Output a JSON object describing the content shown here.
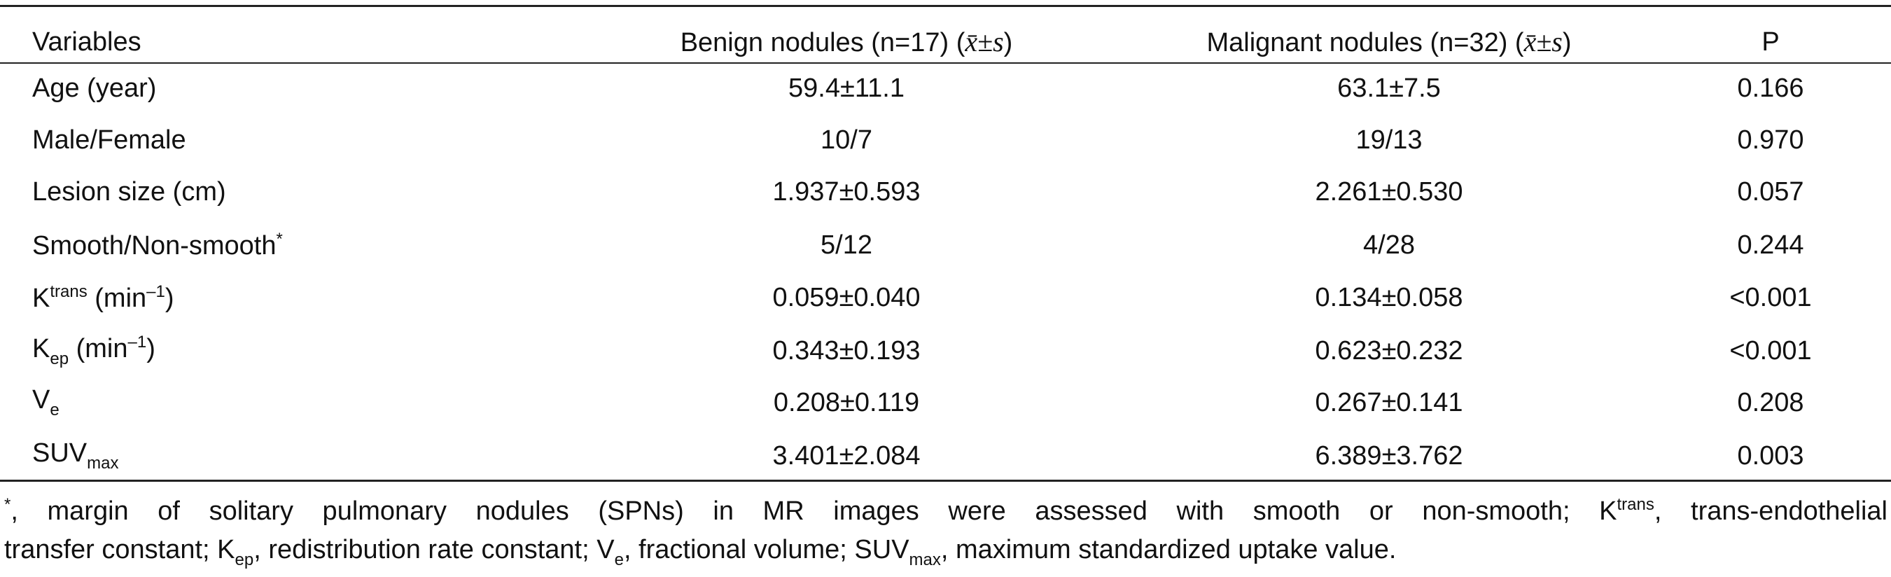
{
  "table": {
    "header": [
      [
        {
          "text": "Variables"
        }
      ],
      [
        {
          "text": "Benign nodules (n=17) ("
        },
        {
          "math": "x̄±s"
        },
        {
          "text": ")"
        }
      ],
      [
        {
          "text": "Malignant nodules (n=32) ("
        },
        {
          "math": "x̄±s"
        },
        {
          "text": ")"
        }
      ],
      [
        {
          "text": "P"
        }
      ]
    ],
    "rows": [
      [
        [
          {
            "text": "Age (year)"
          }
        ],
        "59.4±11.1",
        "63.1±7.5",
        "0.166"
      ],
      [
        [
          {
            "text": "Male/Female"
          }
        ],
        "10/7",
        "19/13",
        "0.970"
      ],
      [
        [
          {
            "text": "Lesion size (cm)"
          }
        ],
        "1.937±0.593",
        "2.261±0.530",
        "0.057"
      ],
      [
        [
          {
            "text": "Smooth/Non-smooth"
          },
          {
            "sup": "*"
          }
        ],
        "5/12",
        "4/28",
        "0.244"
      ],
      [
        [
          {
            "text": "K"
          },
          {
            "sup": "trans"
          },
          {
            "text": " (min"
          },
          {
            "sup": "–1"
          },
          {
            "text": ")"
          }
        ],
        "0.059±0.040",
        "0.134±0.058",
        "<0.001"
      ],
      [
        [
          {
            "text": "K"
          },
          {
            "sub": "ep"
          },
          {
            "text": " (min"
          },
          {
            "sup": "–1"
          },
          {
            "text": ")"
          }
        ],
        "0.343±0.193",
        "0.623±0.232",
        "<0.001"
      ],
      [
        [
          {
            "text": "V"
          },
          {
            "sub": "e"
          }
        ],
        "0.208±0.119",
        "0.267±0.141",
        "0.208"
      ],
      [
        [
          {
            "text": "SUV"
          },
          {
            "sub": "max"
          }
        ],
        "3.401±2.084",
        "6.389±3.762",
        "0.003"
      ]
    ]
  },
  "footnote": [
    [
      {
        "sup": "*"
      },
      {
        "text": ", margin of solitary pulmonary nodules (SPNs) in MR images were assessed with smooth or non-smooth; K"
      },
      {
        "sup": "trans"
      },
      {
        "text": ", trans-endothelial"
      }
    ],
    [
      {
        "text": "transfer constant; K"
      },
      {
        "sub": "ep"
      },
      {
        "text": ", redistribution rate constant; V"
      },
      {
        "sub": "e"
      },
      {
        "text": ", fractional volume; SUV"
      },
      {
        "sub": "max"
      },
      {
        "text": ", maximum standardized uptake value."
      }
    ]
  ]
}
